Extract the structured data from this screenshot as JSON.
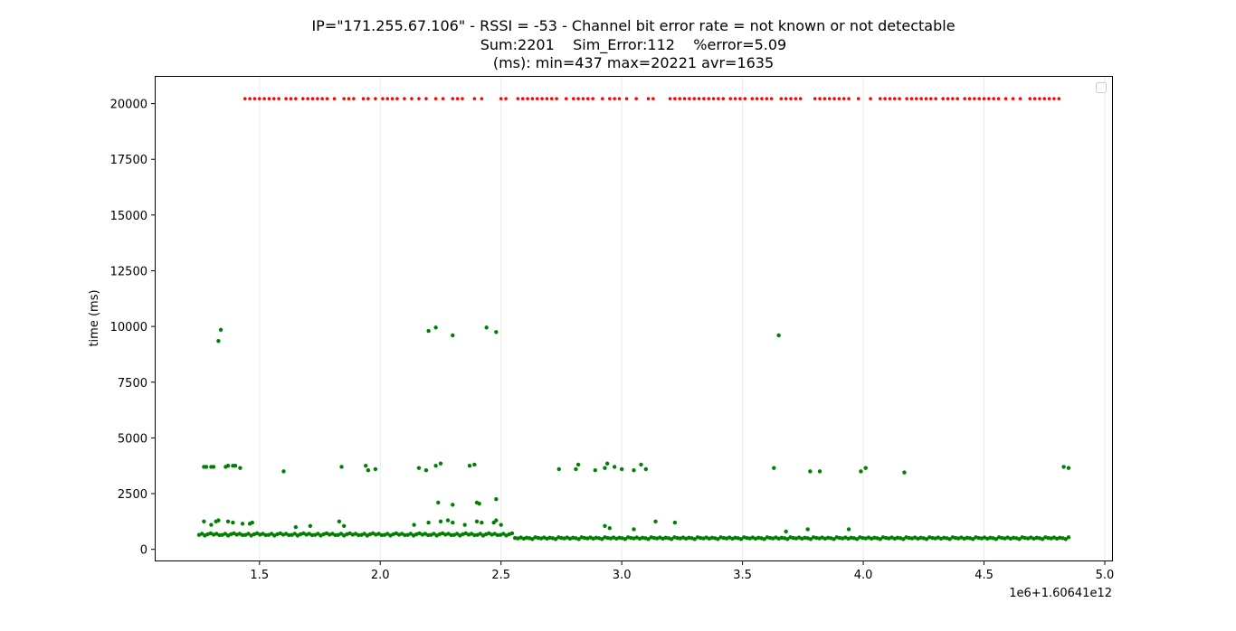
{
  "chart_data": {
    "type": "scatter",
    "title_lines": [
      "IP=\"171.255.67.106\" - RSSI = -53 - Channel bit error rate = not known or not detectable",
      "Sum:2201    Sim_Error:112    %error=5.09",
      "(ms): min=437 max=20221 avr=1635"
    ],
    "ylabel": "time (ms)",
    "xlabel": "",
    "x_offset_label": "1e6+1.60641e12",
    "xlim": [
      1.07,
      5.03
    ],
    "ylim": [
      -500,
      21200
    ],
    "xticks": [
      1.5,
      2.0,
      2.5,
      3.0,
      3.5,
      4.0,
      4.5,
      5.0
    ],
    "xtick_labels": [
      "1.5",
      "2.0",
      "2.5",
      "3.0",
      "3.5",
      "4.0",
      "4.5",
      "5.0"
    ],
    "yticks": [
      0,
      2500,
      5000,
      7500,
      10000,
      12500,
      15000,
      17500,
      20000
    ],
    "ytick_labels": [
      "0",
      "2500",
      "5000",
      "7500",
      "10000",
      "12500",
      "15000",
      "17500",
      "20000"
    ],
    "grid": "x-only",
    "legend": "upper-right (empty)",
    "colors": {
      "ok": "#008000",
      "error": "#ff0000",
      "grid": "#ebebeb"
    },
    "series": [
      {
        "kind": "error",
        "y": 20221,
        "x": [
          1.44,
          1.46,
          1.48,
          1.5,
          1.52,
          1.54,
          1.56,
          1.58,
          1.61,
          1.63,
          1.65,
          1.68,
          1.7,
          1.72,
          1.74,
          1.76,
          1.78,
          1.81,
          1.85,
          1.87,
          1.89,
          1.93,
          1.95,
          1.98,
          2.01,
          2.03,
          2.05,
          2.07,
          2.1,
          2.13,
          2.16,
          2.19,
          2.23,
          2.26,
          2.3,
          2.32,
          2.34,
          2.39,
          2.42,
          2.5,
          2.52,
          2.57,
          2.59,
          2.61,
          2.63,
          2.65,
          2.67,
          2.69,
          2.71,
          2.73,
          2.77,
          2.8,
          2.82,
          2.84,
          2.86,
          2.88,
          2.92,
          2.95,
          2.97,
          2.99,
          3.02,
          3.06,
          3.11,
          3.13,
          3.2,
          3.22,
          3.24,
          3.26,
          3.28,
          3.3,
          3.32,
          3.34,
          3.36,
          3.38,
          3.4,
          3.42,
          3.45,
          3.47,
          3.49,
          3.51,
          3.54,
          3.56,
          3.58,
          3.6,
          3.62,
          3.66,
          3.68,
          3.7,
          3.72,
          3.74,
          3.8,
          3.82,
          3.84,
          3.86,
          3.88,
          3.9,
          3.92,
          3.94,
          3.98,
          4.03,
          4.07,
          4.09,
          4.11,
          4.13,
          4.15,
          4.18,
          4.2,
          4.22,
          4.24,
          4.26,
          4.28,
          4.3,
          4.33,
          4.35,
          4.37,
          4.39,
          4.42,
          4.44,
          4.46,
          4.48,
          4.5,
          4.52,
          4.54,
          4.56,
          4.59,
          4.62,
          4.65,
          4.69,
          4.71,
          4.73,
          4.75,
          4.77,
          4.79,
          4.81
        ]
      },
      {
        "kind": "ok",
        "points": [
          [
            1.27,
            3700
          ],
          [
            1.28,
            3700
          ],
          [
            1.3,
            3700
          ],
          [
            1.31,
            3700
          ],
          [
            1.33,
            9350
          ],
          [
            1.34,
            9850
          ],
          [
            1.36,
            3700
          ],
          [
            1.37,
            3750
          ],
          [
            1.39,
            3750
          ],
          [
            1.4,
            3750
          ],
          [
            1.42,
            3650
          ],
          [
            1.6,
            3500
          ],
          [
            1.84,
            3700
          ],
          [
            1.94,
            3750
          ],
          [
            1.95,
            3550
          ],
          [
            1.98,
            3600
          ],
          [
            2.16,
            3650
          ],
          [
            2.19,
            3550
          ],
          [
            2.2,
            9800
          ],
          [
            2.23,
            9950
          ],
          [
            2.23,
            3750
          ],
          [
            2.25,
            3850
          ],
          [
            2.3,
            9600
          ],
          [
            2.37,
            3750
          ],
          [
            2.39,
            3800
          ],
          [
            2.44,
            9950
          ],
          [
            2.48,
            9750
          ],
          [
            2.74,
            3600
          ],
          [
            2.81,
            3600
          ],
          [
            2.82,
            3800
          ],
          [
            2.89,
            3550
          ],
          [
            2.93,
            3650
          ],
          [
            2.94,
            3850
          ],
          [
            2.97,
            3700
          ],
          [
            3.0,
            3600
          ],
          [
            3.05,
            3550
          ],
          [
            3.08,
            3800
          ],
          [
            3.1,
            3600
          ],
          [
            3.63,
            3650
          ],
          [
            3.65,
            9600
          ],
          [
            3.78,
            3500
          ],
          [
            3.82,
            3500
          ],
          [
            3.99,
            3500
          ],
          [
            4.01,
            3650
          ],
          [
            4.17,
            3450
          ],
          [
            4.83,
            3700
          ],
          [
            4.85,
            3650
          ],
          [
            2.24,
            2100
          ],
          [
            2.3,
            2000
          ],
          [
            2.4,
            2100
          ],
          [
            2.41,
            2050
          ],
          [
            2.48,
            2250
          ],
          [
            1.27,
            1250
          ],
          [
            1.3,
            1100
          ],
          [
            1.32,
            1250
          ],
          [
            1.33,
            1300
          ],
          [
            1.37,
            1250
          ],
          [
            1.39,
            1200
          ],
          [
            1.43,
            1150
          ],
          [
            1.46,
            1150
          ],
          [
            1.47,
            1200
          ],
          [
            1.65,
            1000
          ],
          [
            1.71,
            1050
          ],
          [
            1.83,
            1250
          ],
          [
            1.85,
            1050
          ],
          [
            2.14,
            1100
          ],
          [
            2.2,
            1200
          ],
          [
            2.25,
            1250
          ],
          [
            2.28,
            1300
          ],
          [
            2.3,
            1200
          ],
          [
            2.35,
            1100
          ],
          [
            2.4,
            1250
          ],
          [
            2.42,
            1200
          ],
          [
            2.47,
            1200
          ],
          [
            2.48,
            1300
          ],
          [
            2.5,
            1100
          ],
          [
            2.93,
            1050
          ],
          [
            2.95,
            950
          ],
          [
            3.05,
            900
          ],
          [
            3.14,
            1250
          ],
          [
            3.22,
            1200
          ],
          [
            3.68,
            800
          ],
          [
            3.77,
            900
          ],
          [
            3.94,
            900
          ]
        ],
        "baseline": {
          "x_start": 1.25,
          "x_end": 4.85,
          "step": 0.012,
          "y_dense": [
            650,
            700,
            620,
            680,
            720,
            660,
            700,
            640
          ],
          "y_sparse": [
            480,
            520,
            500,
            460,
            540,
            510,
            490,
            530
          ]
        }
      }
    ]
  }
}
